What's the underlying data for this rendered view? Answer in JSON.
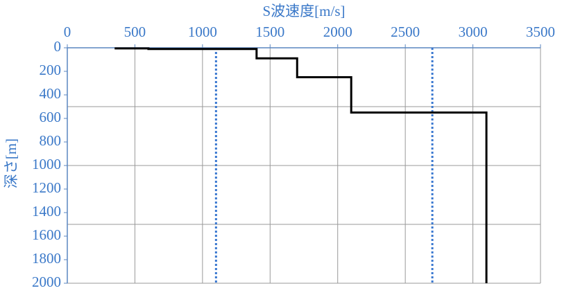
{
  "chart_data": {
    "type": "line",
    "xlabel": "S波速度[m/s]",
    "ylabel": "深さ[m]",
    "xlim": [
      0,
      3500
    ],
    "xticks": [
      0,
      500,
      1000,
      1500,
      2000,
      2500,
      3000,
      3500
    ],
    "ylim": [
      0,
      2000
    ],
    "yticks": [
      0,
      200,
      400,
      600,
      800,
      1000,
      1200,
      1400,
      1600,
      1800,
      2000
    ],
    "y_inverted": true,
    "x_axis_position": "top",
    "grid": true,
    "ygrid": [
      500,
      1000,
      1500,
      2000
    ],
    "series": [
      {
        "color": "#000000",
        "x": [
          350,
          600,
          600,
          1400,
          1400,
          1700,
          1700,
          2100,
          2100,
          3100,
          3100
        ],
        "y": [
          5,
          5,
          10,
          10,
          90,
          90,
          250,
          250,
          550,
          550,
          2000
        ]
      }
    ],
    "vlines": {
      "color": "#3a78d0",
      "values": [
        1100,
        2700
      ]
    }
  }
}
